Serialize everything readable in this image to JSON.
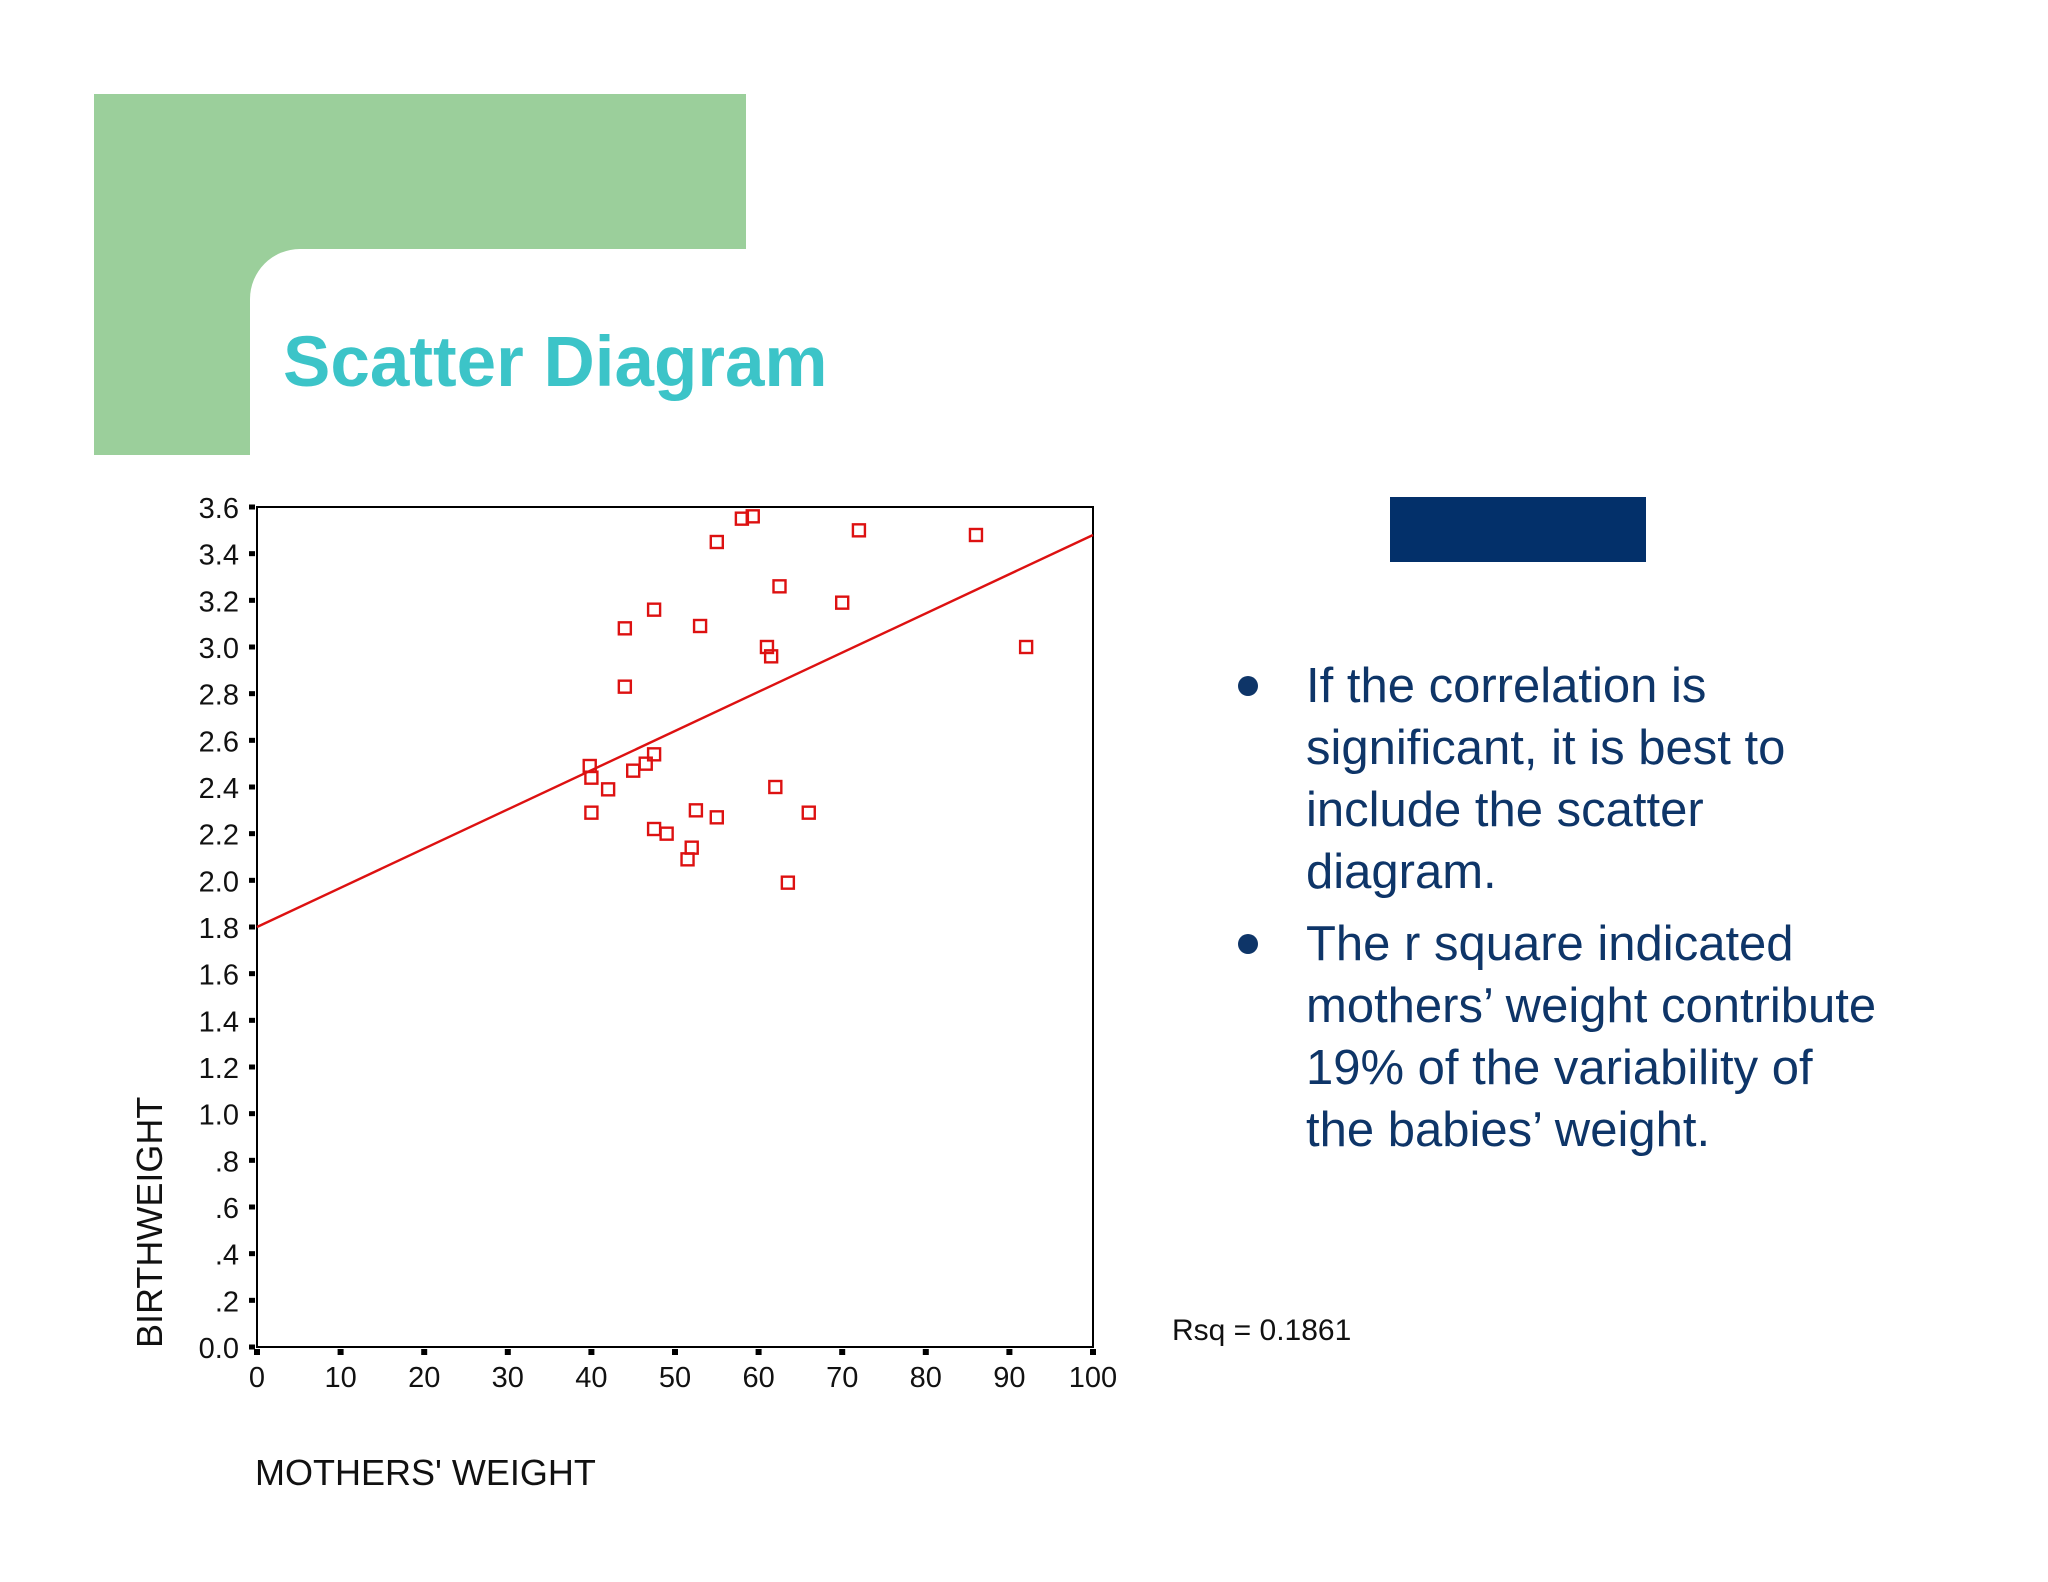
{
  "slide": {
    "title": "Scatter Diagram",
    "colors": {
      "accent_block": "#9bcf9b",
      "title": "#3cc4c8",
      "navy_bar": "#03306a",
      "bullet_text": "#0e3568",
      "marker": "#dd1111",
      "fit_line": "#dd1111"
    },
    "bullets": [
      "If the correlation is significant, it is best to include the scatter diagram.",
      "The r square indicated mothers’ weight contribute 19% of the variability of the babies’ weight."
    ]
  },
  "chart_data": {
    "type": "scatter",
    "title": "",
    "xlabel": "MOTHERS' WEIGHT",
    "ylabel": "BIRTHWEIGHT",
    "xlim": [
      0,
      100
    ],
    "ylim": [
      0,
      3.6
    ],
    "x_ticks": [
      0,
      10,
      20,
      30,
      40,
      50,
      60,
      70,
      80,
      90,
      100
    ],
    "x_tick_labels": [
      "0",
      "10",
      "20",
      "30",
      "40",
      "50",
      "60",
      "70",
      "80",
      "90",
      "100"
    ],
    "y_ticks": [
      0,
      0.2,
      0.4,
      0.6,
      0.8,
      1.0,
      1.2,
      1.4,
      1.6,
      1.8,
      2.0,
      2.2,
      2.4,
      2.6,
      2.8,
      3.0,
      3.2,
      3.4,
      3.6
    ],
    "y_tick_labels": [
      "0.0",
      ".2",
      ".4",
      ".6",
      ".8",
      "1.0",
      "1.2",
      "1.4",
      "1.6",
      "1.8",
      "2.0",
      "2.2",
      "2.4",
      "2.6",
      "2.8",
      "3.0",
      "3.2",
      "3.4",
      "3.6"
    ],
    "grid": false,
    "points": [
      {
        "x": 58,
        "y": 3.55
      },
      {
        "x": 59.3,
        "y": 3.56
      },
      {
        "x": 55,
        "y": 3.45
      },
      {
        "x": 72,
        "y": 3.5
      },
      {
        "x": 86,
        "y": 3.48
      },
      {
        "x": 62.5,
        "y": 3.26
      },
      {
        "x": 47.5,
        "y": 3.16
      },
      {
        "x": 70,
        "y": 3.19
      },
      {
        "x": 44,
        "y": 3.08
      },
      {
        "x": 53,
        "y": 3.09
      },
      {
        "x": 61,
        "y": 3.0
      },
      {
        "x": 61.5,
        "y": 2.96
      },
      {
        "x": 92,
        "y": 3.0
      },
      {
        "x": 44,
        "y": 2.83
      },
      {
        "x": 47.5,
        "y": 2.54
      },
      {
        "x": 46.5,
        "y": 2.5
      },
      {
        "x": 45,
        "y": 2.47
      },
      {
        "x": 39.8,
        "y": 2.49
      },
      {
        "x": 40,
        "y": 2.44
      },
      {
        "x": 42,
        "y": 2.39
      },
      {
        "x": 62,
        "y": 2.4
      },
      {
        "x": 40,
        "y": 2.29
      },
      {
        "x": 52.5,
        "y": 2.3
      },
      {
        "x": 55,
        "y": 2.27
      },
      {
        "x": 66,
        "y": 2.29
      },
      {
        "x": 47.5,
        "y": 2.22
      },
      {
        "x": 49,
        "y": 2.2
      },
      {
        "x": 52,
        "y": 2.14
      },
      {
        "x": 51.5,
        "y": 2.09
      },
      {
        "x": 63.5,
        "y": 1.99
      }
    ],
    "fit_line": {
      "x": [
        0,
        100
      ],
      "y": [
        1.8,
        3.48
      ]
    },
    "annotations": [
      {
        "text": "Rsq = 0.1861"
      }
    ]
  }
}
